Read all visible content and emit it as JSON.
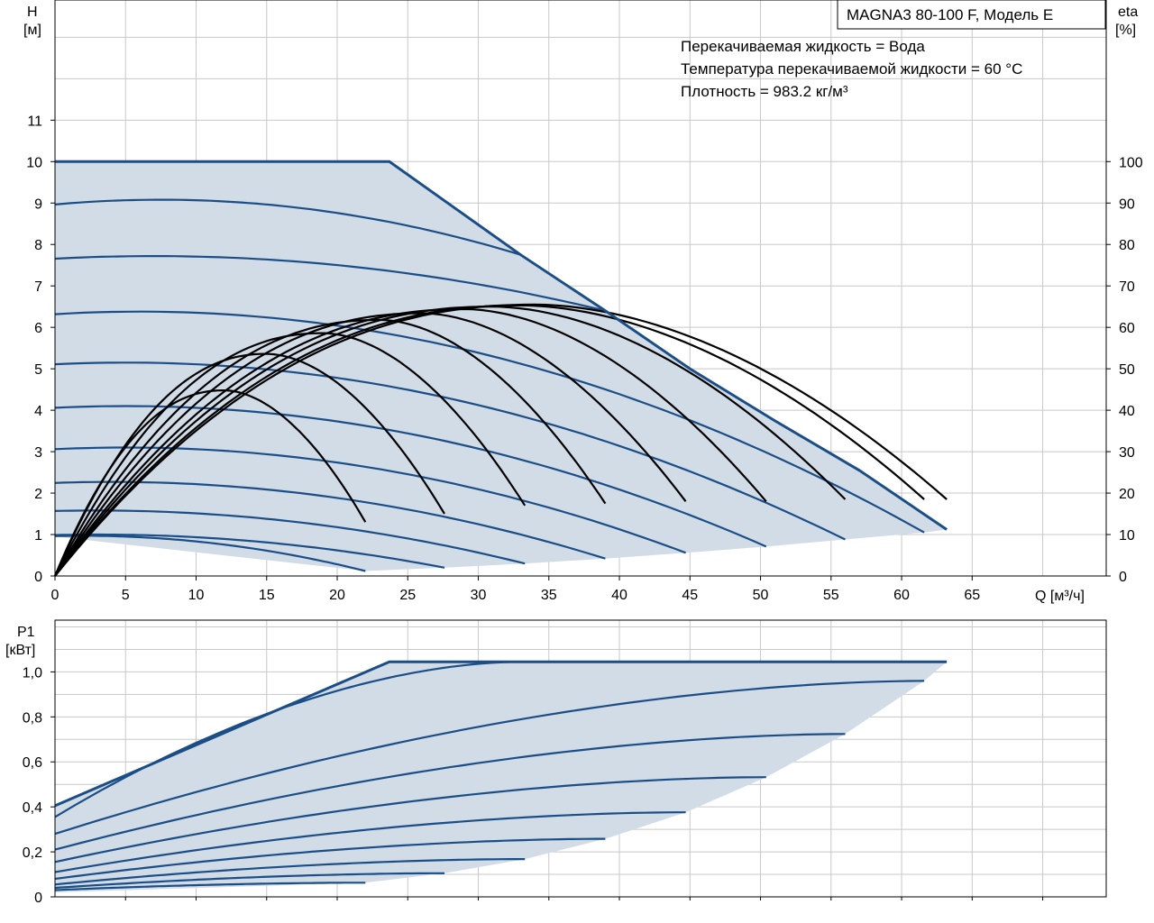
{
  "chart_data": [
    {
      "type": "line",
      "title": "MAGNA3 80-100 F, Модель E",
      "ylabel_name": "H",
      "ylabel_unit": "[м]",
      "y2label_name": "eta",
      "y2label_unit": "[%]",
      "xlabel": "Q [м³/ч]",
      "xlim": [
        0,
        74.5
      ],
      "ylim": [
        0,
        13.9
      ],
      "y2lim": [
        0,
        139
      ],
      "grid": true,
      "x_ticks": [
        "0",
        "5",
        "10",
        "15",
        "20",
        "25",
        "30",
        "35",
        "40",
        "45",
        "50",
        "55",
        "60",
        "65"
      ],
      "y_ticks": [
        "0",
        "1",
        "2",
        "3",
        "4",
        "5",
        "6",
        "7",
        "8",
        "9",
        "10",
        "11"
      ],
      "y2_ticks": [
        "0",
        "10",
        "20",
        "30",
        "40",
        "50",
        "60",
        "70",
        "80",
        "90",
        "100"
      ],
      "annotations": [
        "Перекачиваемая жидкость = Вода",
        "Температура перекачиваемой жидкости = 60 °C",
        "Плотность = 983.2 кг/м³"
      ],
      "max_curve": [
        [
          0,
          10.0
        ],
        [
          23.7,
          10.0
        ],
        [
          33,
          7.75
        ],
        [
          39,
          6.4
        ],
        [
          45,
          5.0
        ],
        [
          51,
          3.75
        ],
        [
          57,
          2.55
        ],
        [
          63.2,
          1.12
        ]
      ],
      "min_curve": [
        [
          22,
          0.12
        ],
        [
          27.6,
          0.2
        ],
        [
          33.3,
          0.3
        ],
        [
          39,
          0.42
        ],
        [
          44.7,
          0.56
        ],
        [
          50.4,
          0.71
        ],
        [
          56,
          0.88
        ],
        [
          61.6,
          1.05
        ],
        [
          63.2,
          1.12
        ]
      ],
      "series": [
        {
          "kind": "head",
          "peak_h": 9.08,
          "peak_q": 7.5,
          "end_q": 33,
          "end_h": 7.75
        },
        {
          "kind": "head",
          "peak_h": 7.72,
          "peak_q": 7.0,
          "end_q": 39,
          "end_h": 6.4
        },
        {
          "kind": "head",
          "peak_h": 6.38,
          "peak_q": 6.0,
          "end_q": 61.6,
          "end_h": 1.05
        },
        {
          "kind": "head",
          "peak_h": 5.15,
          "peak_q": 5.0,
          "end_q": 56,
          "end_h": 0.88
        },
        {
          "kind": "head",
          "peak_h": 4.1,
          "peak_q": 5.0,
          "end_q": 50.4,
          "end_h": 0.71
        },
        {
          "kind": "head",
          "peak_h": 3.1,
          "peak_q": 5.0,
          "end_q": 44.7,
          "end_h": 0.56
        },
        {
          "kind": "head",
          "peak_h": 2.27,
          "peak_q": 4.0,
          "end_q": 39,
          "end_h": 0.42
        },
        {
          "kind": "head",
          "peak_h": 1.58,
          "peak_q": 3.0,
          "end_q": 33.3,
          "end_h": 0.3
        },
        {
          "kind": "head",
          "peak_h": 1.0,
          "peak_q": 3.0,
          "end_q": 27.6,
          "end_h": 0.2
        },
        {
          "kind": "head",
          "peak_h": 0.97,
          "peak_q": 2.0,
          "end_q": 22,
          "end_h": 0.12
        },
        {
          "kind": "eta",
          "peak_eta": 44.8,
          "peak_q": 12.0,
          "end_q": 22,
          "end_eta": 13
        },
        {
          "kind": "eta",
          "peak_eta": 53.6,
          "peak_q": 15.0,
          "end_q": 27.6,
          "end_eta": 15
        },
        {
          "kind": "eta",
          "peak_eta": 58.6,
          "peak_q": 19.0,
          "end_q": 33.3,
          "end_eta": 17
        },
        {
          "kind": "eta",
          "peak_eta": 61.8,
          "peak_q": 23.0,
          "end_q": 39,
          "end_eta": 17.5
        },
        {
          "kind": "eta",
          "peak_eta": 63.4,
          "peak_q": 26.0,
          "end_q": 44.7,
          "end_eta": 18
        },
        {
          "kind": "eta",
          "peak_eta": 64.4,
          "peak_q": 29.0,
          "end_q": 50.4,
          "end_eta": 18
        },
        {
          "kind": "eta",
          "peak_eta": 65.0,
          "peak_q": 31.0,
          "end_q": 56,
          "end_eta": 18.5
        },
        {
          "kind": "eta",
          "peak_eta": 65.3,
          "peak_q": 33.0,
          "end_q": 61.6,
          "end_eta": 18.5
        },
        {
          "kind": "eta",
          "peak_eta": 65.5,
          "peak_q": 34.0,
          "end_q": 63.2,
          "end_eta": 18.5
        }
      ]
    },
    {
      "type": "line",
      "ylabel_name": "P1",
      "ylabel_unit": "[кВт]",
      "xlim": [
        0,
        74.5
      ],
      "ylim": [
        0,
        1.23
      ],
      "grid": true,
      "y_ticks": [
        "0",
        "0,2",
        "0,4",
        "0,6",
        "0,8",
        "1,0"
      ],
      "max_curve": [
        [
          0,
          0.405
        ],
        [
          23.7,
          1.045
        ],
        [
          63.2,
          1.045
        ]
      ],
      "min_curve": [
        [
          22,
          0.063
        ],
        [
          27.6,
          0.105
        ],
        [
          33.3,
          0.168
        ],
        [
          39,
          0.258
        ],
        [
          44.7,
          0.376
        ],
        [
          50.4,
          0.532
        ],
        [
          56,
          0.724
        ],
        [
          61.6,
          0.96
        ],
        [
          63.2,
          1.045
        ]
      ],
      "series": [
        {
          "start_p": 0.355,
          "end_q": 33,
          "end_p": 1.045
        },
        {
          "start_p": 0.28,
          "end_q": 61.6,
          "end_p": 0.96
        },
        {
          "start_p": 0.21,
          "end_q": 56,
          "end_p": 0.724
        },
        {
          "start_p": 0.155,
          "end_q": 50.4,
          "end_p": 0.532
        },
        {
          "start_p": 0.11,
          "end_q": 44.7,
          "end_p": 0.376
        },
        {
          "start_p": 0.08,
          "end_q": 39,
          "end_p": 0.258
        },
        {
          "start_p": 0.055,
          "end_q": 33.3,
          "end_p": 0.168
        },
        {
          "start_p": 0.04,
          "end_q": 27.6,
          "end_p": 0.105
        },
        {
          "start_p": 0.03,
          "end_q": 22,
          "end_p": 0.063
        }
      ]
    }
  ],
  "colors": {
    "fill": "#d2dce7",
    "curve": "#1b4e86",
    "eta": "#000000",
    "grid": "#c8c8c8",
    "frame": "#000000"
  }
}
